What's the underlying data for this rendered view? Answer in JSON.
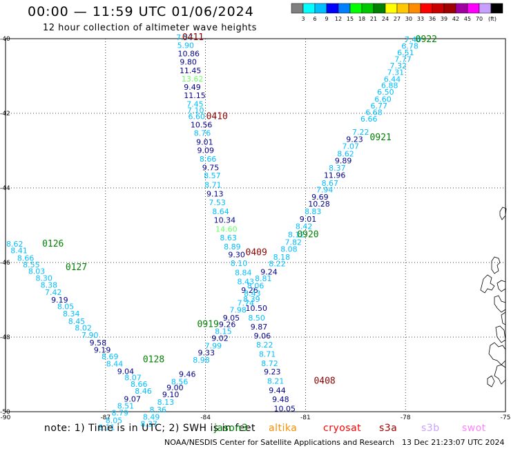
{
  "title": "00:00 — 11:59 UTC 01/06/2024",
  "subtitle": "12 hour collection of altimeter wave heights",
  "legend": {
    "unit": "(ft)",
    "colors": [
      "#7f7f7f",
      "#00ffff",
      "#00bfff",
      "#0000ff",
      "#007fff",
      "#00ff00",
      "#00c800",
      "#008000",
      "#ffff00",
      "#ffc800",
      "#ff8c00",
      "#ff0000",
      "#c80000",
      "#a00000",
      "#a000a0",
      "#ff00ff",
      "#c8a0ff",
      "#000000"
    ],
    "labels": [
      "3",
      "6",
      "9",
      "12",
      "15",
      "18",
      "21",
      "24",
      "27",
      "30",
      "33",
      "36",
      "39",
      "42",
      "45",
      "70"
    ]
  },
  "map": {
    "lat_ticks": [
      "-40",
      "-42",
      "-44",
      "-46",
      "-48",
      "-50"
    ],
    "lon_ticks": [
      "-90",
      "-87",
      "-84",
      "-81",
      "-78",
      "-75"
    ],
    "lon_range": [
      -90,
      -75
    ],
    "lat_range": [
      -50,
      -40
    ]
  },
  "color_scale": {
    "light": "#00bfff",
    "dark": "#00008b",
    "bright": "#66ff66",
    "pass_dark": "#8b0000",
    "pass_green": "#008000"
  },
  "passes": [
    {
      "label": "0411",
      "lon": -84.7,
      "lat": -39.96,
      "color": "pass_dark"
    },
    {
      "label": "0410",
      "lon": -83.98,
      "lat": -42.08,
      "color": "pass_dark"
    },
    {
      "label": "0409",
      "lon": -82.8,
      "lat": -45.73,
      "color": "pass_dark"
    },
    {
      "label": "0408",
      "lon": -80.75,
      "lat": -49.18,
      "color": "pass_dark"
    },
    {
      "label": "0922",
      "lon": -77.7,
      "lat": -40.02,
      "color": "pass_green"
    },
    {
      "label": "0921",
      "lon": -79.07,
      "lat": -42.65,
      "color": "pass_green"
    },
    {
      "label": "0920",
      "lon": -81.25,
      "lat": -45.25,
      "color": "pass_green"
    },
    {
      "label": "0919",
      "lon": -84.25,
      "lat": -47.66,
      "color": "pass_green"
    },
    {
      "label": "0126",
      "lon": -88.9,
      "lat": -45.5,
      "color": "pass_green"
    },
    {
      "label": "0127",
      "lon": -88.2,
      "lat": -46.13,
      "color": "pass_green"
    },
    {
      "label": "0128",
      "lon": -85.88,
      "lat": -48.6,
      "color": "pass_green"
    }
  ],
  "tracks": [
    {
      "name": "track-0411-0408",
      "points": [
        {
          "v": "7.57",
          "lon": -84.88,
          "lat": -39.96,
          "c": "light"
        },
        {
          "v": "5.90",
          "lon": -84.85,
          "lat": -40.18,
          "c": "light"
        },
        {
          "v": "10.86",
          "lon": -84.83,
          "lat": -40.4,
          "c": "dark"
        },
        {
          "v": "9.80",
          "lon": -84.77,
          "lat": -40.62,
          "c": "dark"
        },
        {
          "v": "11.45",
          "lon": -84.78,
          "lat": -40.85,
          "c": "dark"
        },
        {
          "v": "13.62",
          "lon": -84.72,
          "lat": -41.07,
          "c": "bright"
        },
        {
          "v": "9.49",
          "lon": -84.65,
          "lat": -41.3,
          "c": "dark"
        },
        {
          "v": "11.15",
          "lon": -84.65,
          "lat": -41.52,
          "c": "dark"
        },
        {
          "v": "7.45",
          "lon": -84.57,
          "lat": -41.75,
          "c": "light"
        },
        {
          "v": "7.10",
          "lon": -84.55,
          "lat": -41.92,
          "c": "light"
        },
        {
          "v": "6.60",
          "lon": -84.52,
          "lat": -42.08,
          "c": "light"
        },
        {
          "v": "10.56",
          "lon": -84.45,
          "lat": -42.31,
          "c": "dark"
        },
        {
          "v": "8.76",
          "lon": -84.35,
          "lat": -42.53,
          "c": "light"
        },
        {
          "v": "9.01",
          "lon": -84.28,
          "lat": -42.77,
          "c": "dark"
        },
        {
          "v": "9.09",
          "lon": -84.25,
          "lat": -42.99,
          "c": "dark"
        },
        {
          "v": "8.66",
          "lon": -84.18,
          "lat": -43.22,
          "c": "light"
        },
        {
          "v": "9.75",
          "lon": -84.1,
          "lat": -43.45,
          "c": "dark"
        },
        {
          "v": "8.57",
          "lon": -84.05,
          "lat": -43.67,
          "c": "light"
        },
        {
          "v": "8.71",
          "lon": -84.03,
          "lat": -43.92,
          "c": "light"
        },
        {
          "v": "9.13",
          "lon": -83.97,
          "lat": -44.16,
          "c": "dark"
        },
        {
          "v": "7.53",
          "lon": -83.9,
          "lat": -44.39,
          "c": "light"
        },
        {
          "v": "8.64",
          "lon": -83.8,
          "lat": -44.63,
          "c": "light"
        },
        {
          "v": "10.34",
          "lon": -83.75,
          "lat": -44.86,
          "c": "dark"
        },
        {
          "v": "14.60",
          "lon": -83.7,
          "lat": -45.1,
          "c": "bright"
        },
        {
          "v": "8.63",
          "lon": -83.57,
          "lat": -45.33,
          "c": "light"
        },
        {
          "v": "8.89",
          "lon": -83.45,
          "lat": -45.57,
          "c": "light"
        },
        {
          "v": "9.30",
          "lon": -83.32,
          "lat": -45.79,
          "c": "dark"
        },
        {
          "v": "8.10",
          "lon": -83.25,
          "lat": -46.02,
          "c": "light"
        },
        {
          "v": "8.84",
          "lon": -83.12,
          "lat": -46.27,
          "c": "light"
        },
        {
          "v": "8.43",
          "lon": -83.05,
          "lat": -46.51,
          "c": "light"
        },
        {
          "v": "9.26",
          "lon": -82.93,
          "lat": -46.74,
          "c": "dark"
        },
        {
          "v": "8.39",
          "lon": -82.87,
          "lat": -46.98,
          "c": "light"
        },
        {
          "v": "10.50",
          "lon": -82.8,
          "lat": -47.22,
          "c": "dark"
        },
        {
          "v": "8.50",
          "lon": -82.72,
          "lat": -47.48,
          "c": "light"
        },
        {
          "v": "9.87",
          "lon": -82.65,
          "lat": -47.72,
          "c": "dark"
        },
        {
          "v": "9.06",
          "lon": -82.55,
          "lat": -47.96,
          "c": "dark"
        },
        {
          "v": "8.22",
          "lon": -82.48,
          "lat": -48.2,
          "c": "light"
        },
        {
          "v": "8.71",
          "lon": -82.4,
          "lat": -48.45,
          "c": "light"
        },
        {
          "v": "8.72",
          "lon": -82.33,
          "lat": -48.7,
          "c": "light"
        },
        {
          "v": "9.23",
          "lon": -82.25,
          "lat": -48.93,
          "c": "dark"
        },
        {
          "v": "8.21",
          "lon": -82.15,
          "lat": -49.18,
          "c": "light"
        },
        {
          "v": "9.44",
          "lon": -82.1,
          "lat": -49.43,
          "c": "dark"
        },
        {
          "v": "9.48",
          "lon": -82.0,
          "lat": -49.67,
          "c": "dark"
        },
        {
          "v": "10.05",
          "lon": -81.95,
          "lat": -49.92,
          "c": "dark"
        }
      ]
    },
    {
      "name": "track-0922-0919",
      "points": [
        {
          "v": "7.40",
          "lon": -78.03,
          "lat": -40.02,
          "c": "light"
        },
        {
          "v": "6.78",
          "lon": -78.12,
          "lat": -40.19,
          "c": "light"
        },
        {
          "v": "6.51",
          "lon": -78.25,
          "lat": -40.37,
          "c": "light"
        },
        {
          "v": "7.77",
          "lon": -78.33,
          "lat": -40.55,
          "c": "light"
        },
        {
          "v": "7.32",
          "lon": -78.47,
          "lat": -40.72,
          "c": "light"
        },
        {
          "v": "7.31",
          "lon": -78.55,
          "lat": -40.9,
          "c": "light"
        },
        {
          "v": "6.44",
          "lon": -78.65,
          "lat": -41.08,
          "c": "light"
        },
        {
          "v": "6.88",
          "lon": -78.73,
          "lat": -41.25,
          "c": "light"
        },
        {
          "v": "6.50",
          "lon": -78.85,
          "lat": -41.43,
          "c": "light"
        },
        {
          "v": "6.60",
          "lon": -78.93,
          "lat": -41.62,
          "c": "light"
        },
        {
          "v": "6.77",
          "lon": -79.05,
          "lat": -41.8,
          "c": "light"
        },
        {
          "v": "6.68",
          "lon": -79.2,
          "lat": -41.97,
          "c": "light"
        },
        {
          "v": "6.66",
          "lon": -79.35,
          "lat": -42.15,
          "c": "light"
        },
        {
          "v": "7.22",
          "lon": -79.6,
          "lat": -42.5,
          "c": "light"
        },
        {
          "v": "9.23",
          "lon": -79.78,
          "lat": -42.69,
          "c": "dark"
        },
        {
          "v": "7.07",
          "lon": -79.9,
          "lat": -42.88,
          "c": "light"
        },
        {
          "v": "8.62",
          "lon": -80.05,
          "lat": -43.08,
          "c": "light"
        },
        {
          "v": "9.89",
          "lon": -80.12,
          "lat": -43.27,
          "c": "dark"
        },
        {
          "v": "8.37",
          "lon": -80.3,
          "lat": -43.46,
          "c": "light"
        },
        {
          "v": "11.96",
          "lon": -80.45,
          "lat": -43.66,
          "c": "dark"
        },
        {
          "v": "8.67",
          "lon": -80.52,
          "lat": -43.87,
          "c": "light"
        },
        {
          "v": "7.94",
          "lon": -80.68,
          "lat": -44.05,
          "c": "light"
        },
        {
          "v": "9.69",
          "lon": -80.82,
          "lat": -44.24,
          "c": "dark"
        },
        {
          "v": "10.28",
          "lon": -80.92,
          "lat": -44.43,
          "c": "dark"
        },
        {
          "v": "8.83",
          "lon": -81.03,
          "lat": -44.63,
          "c": "light"
        },
        {
          "v": "9.01",
          "lon": -81.18,
          "lat": -44.83,
          "c": "dark"
        },
        {
          "v": "8.42",
          "lon": -81.3,
          "lat": -45.03,
          "c": "light"
        },
        {
          "v": "8.12",
          "lon": -81.53,
          "lat": -45.25,
          "c": "light"
        },
        {
          "v": "7.82",
          "lon": -81.62,
          "lat": -45.45,
          "c": "light"
        },
        {
          "v": "8.08",
          "lon": -81.75,
          "lat": -45.64,
          "c": "light"
        },
        {
          "v": "8.18",
          "lon": -81.97,
          "lat": -45.85,
          "c": "light"
        },
        {
          "v": "8.22",
          "lon": -82.1,
          "lat": -46.03,
          "c": "light"
        },
        {
          "v": "9.24",
          "lon": -82.35,
          "lat": -46.25,
          "c": "dark"
        },
        {
          "v": "8.81",
          "lon": -82.52,
          "lat": -46.43,
          "c": "light"
        },
        {
          "v": "8.06",
          "lon": -82.75,
          "lat": -46.62,
          "c": "light"
        },
        {
          "v": "8.43",
          "lon": -82.85,
          "lat": -46.82,
          "c": "light"
        },
        {
          "v": "7.74",
          "lon": -83.05,
          "lat": -47.08,
          "c": "light"
        },
        {
          "v": "7.98",
          "lon": -83.28,
          "lat": -47.27,
          "c": "light"
        },
        {
          "v": "9.05",
          "lon": -83.48,
          "lat": -47.48,
          "c": "dark"
        },
        {
          "v": "9.26",
          "lon": -83.6,
          "lat": -47.66,
          "c": "dark"
        },
        {
          "v": "8.15",
          "lon": -83.72,
          "lat": -47.84,
          "c": "light"
        },
        {
          "v": "9.02",
          "lon": -83.82,
          "lat": -48.03,
          "c": "dark"
        },
        {
          "v": "7.99",
          "lon": -84.02,
          "lat": -48.23,
          "c": "light"
        },
        {
          "v": "9.33",
          "lon": -84.23,
          "lat": -48.42,
          "c": "dark"
        },
        {
          "v": "8.98",
          "lon": -84.38,
          "lat": -48.61,
          "c": "light"
        },
        {
          "v": "9.46",
          "lon": -84.8,
          "lat": -48.99,
          "c": "dark"
        },
        {
          "v": "8.56",
          "lon": -85.03,
          "lat": -49.19,
          "c": "light"
        },
        {
          "v": "9.00",
          "lon": -85.17,
          "lat": -49.35,
          "c": "dark"
        },
        {
          "v": "9.10",
          "lon": -85.3,
          "lat": -49.54,
          "c": "dark"
        },
        {
          "v": "8.13",
          "lon": -85.45,
          "lat": -49.74,
          "c": "light"
        },
        {
          "v": "8.36",
          "lon": -85.68,
          "lat": -49.94,
          "c": "light"
        },
        {
          "v": "8.49",
          "lon": -85.88,
          "lat": -50.14,
          "c": "light"
        },
        {
          "v": "8.37",
          "lon": -85.95,
          "lat": -50.32,
          "c": "light"
        }
      ]
    },
    {
      "name": "track-0126-0128",
      "points": [
        {
          "v": "8.62",
          "lon": -89.98,
          "lat": -45.5,
          "c": "light"
        },
        {
          "v": "8.41",
          "lon": -89.85,
          "lat": -45.68,
          "c": "light"
        },
        {
          "v": "8.66",
          "lon": -89.65,
          "lat": -45.88,
          "c": "light"
        },
        {
          "v": "8.55",
          "lon": -89.48,
          "lat": -46.06,
          "c": "light"
        },
        {
          "v": "8.03",
          "lon": -89.32,
          "lat": -46.23,
          "c": "light"
        },
        {
          "v": "8.30",
          "lon": -89.1,
          "lat": -46.42,
          "c": "light"
        },
        {
          "v": "8.38",
          "lon": -88.95,
          "lat": -46.6,
          "c": "light"
        },
        {
          "v": "7.42",
          "lon": -88.82,
          "lat": -46.8,
          "c": "light"
        },
        {
          "v": "9.19",
          "lon": -88.63,
          "lat": -47.0,
          "c": "dark"
        },
        {
          "v": "8.05",
          "lon": -88.45,
          "lat": -47.18,
          "c": "light"
        },
        {
          "v": "8.34",
          "lon": -88.28,
          "lat": -47.37,
          "c": "light"
        },
        {
          "v": "8.45",
          "lon": -88.12,
          "lat": -47.57,
          "c": "light"
        },
        {
          "v": "8.02",
          "lon": -87.92,
          "lat": -47.75,
          "c": "light"
        },
        {
          "v": "7.90",
          "lon": -87.72,
          "lat": -47.94,
          "c": "light"
        },
        {
          "v": "9.58",
          "lon": -87.48,
          "lat": -48.15,
          "c": "dark"
        },
        {
          "v": "9.19",
          "lon": -87.35,
          "lat": -48.34,
          "c": "dark"
        },
        {
          "v": "8.69",
          "lon": -87.12,
          "lat": -48.52,
          "c": "light"
        },
        {
          "v": "8.44",
          "lon": -86.98,
          "lat": -48.71,
          "c": "light"
        },
        {
          "v": "9.04",
          "lon": -86.65,
          "lat": -48.92,
          "c": "dark"
        },
        {
          "v": "8.07",
          "lon": -86.43,
          "lat": -49.08,
          "c": "light"
        },
        {
          "v": "8.66",
          "lon": -86.25,
          "lat": -49.26,
          "c": "light"
        },
        {
          "v": "8.46",
          "lon": -86.12,
          "lat": -49.44,
          "c": "light"
        },
        {
          "v": "9.07",
          "lon": -86.45,
          "lat": -49.66,
          "c": "dark"
        },
        {
          "v": "8.51",
          "lon": -86.65,
          "lat": -49.84,
          "c": "light"
        },
        {
          "v": "8.79",
          "lon": -86.82,
          "lat": -50.03,
          "c": "light"
        },
        {
          "v": "8.05",
          "lon": -87.0,
          "lat": -50.23,
          "c": "light"
        },
        {
          "v": "8.11",
          "lon": -87.22,
          "lat": -50.42,
          "c": "light"
        }
      ]
    }
  ],
  "footer": {
    "note": "note:  1) Time is in UTC; 2) SWH is in feet",
    "satellites": [
      {
        "label": "jason3",
        "color": "#008000"
      },
      {
        "label": "altika",
        "color": "#ff8c00"
      },
      {
        "label": "cryosat",
        "color": "#ff0000"
      },
      {
        "label": "s3a",
        "color": "#a00000"
      },
      {
        "label": "s3b",
        "color": "#c8a0ff"
      },
      {
        "label": "swot",
        "color": "#ff80ff"
      }
    ],
    "credit": "NOAA/NESDIS Center for Satellite Applications and Research",
    "stamp": "13 Dec 21:23:07 UTC 2024"
  }
}
